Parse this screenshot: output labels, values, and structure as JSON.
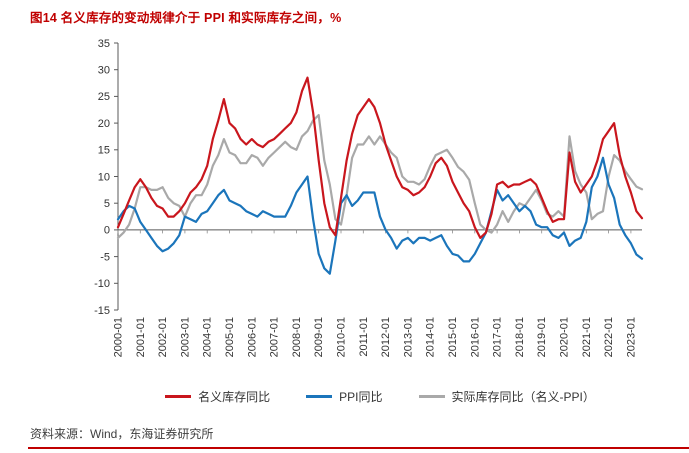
{
  "title": "图14  名义库存的变动规律介于 PPI 和实际库存之间，%",
  "source": "资料来源：Wind，东海证券研究所",
  "colors": {
    "accent_red": "#C00000",
    "axis": "#595959",
    "tick_text": "#333333"
  },
  "legend": [
    {
      "label": "名义库存同比"
    },
    {
      "label": "PPI同比"
    },
    {
      "label": "实际库存同比（名义-PPI）"
    }
  ],
  "chart_data": {
    "type": "line",
    "title": "图14 名义库存的变动规律介于 PPI 和实际库存之间，%",
    "unit": "%",
    "grid": false,
    "legend_position": "bottom",
    "ylim": [
      -15,
      35
    ],
    "y_ticks": [
      35,
      30,
      25,
      20,
      15,
      10,
      5,
      0,
      -5,
      -10,
      -15
    ],
    "x_tick_labels": [
      "2000-01",
      "2001-01",
      "2002-01",
      "2003-01",
      "2004-01",
      "2005-01",
      "2006-01",
      "2007-01",
      "2008-01",
      "2009-01",
      "2010-01",
      "2011-01",
      "2012-01",
      "2013-01",
      "2014-01",
      "2015-01",
      "2016-01",
      "2017-01",
      "2018-01",
      "2019-01",
      "2020-01",
      "2021-01",
      "2022-01",
      "2023-01"
    ],
    "x": [
      "2000-01",
      "2000-04",
      "2000-07",
      "2000-10",
      "2001-01",
      "2001-04",
      "2001-07",
      "2001-10",
      "2002-01",
      "2002-04",
      "2002-07",
      "2002-10",
      "2003-01",
      "2003-04",
      "2003-07",
      "2003-10",
      "2004-01",
      "2004-04",
      "2004-07",
      "2004-10",
      "2005-01",
      "2005-04",
      "2005-07",
      "2005-10",
      "2006-01",
      "2006-04",
      "2006-07",
      "2006-10",
      "2007-01",
      "2007-04",
      "2007-07",
      "2007-10",
      "2008-01",
      "2008-04",
      "2008-07",
      "2008-10",
      "2009-01",
      "2009-04",
      "2009-07",
      "2009-10",
      "2010-01",
      "2010-04",
      "2010-07",
      "2010-10",
      "2011-01",
      "2011-04",
      "2011-07",
      "2011-10",
      "2012-01",
      "2012-04",
      "2012-07",
      "2012-10",
      "2013-01",
      "2013-04",
      "2013-07",
      "2013-10",
      "2014-01",
      "2014-04",
      "2014-07",
      "2014-10",
      "2015-01",
      "2015-04",
      "2015-07",
      "2015-10",
      "2016-01",
      "2016-04",
      "2016-07",
      "2016-10",
      "2017-01",
      "2017-04",
      "2017-07",
      "2017-10",
      "2018-01",
      "2018-04",
      "2018-07",
      "2018-10",
      "2019-01",
      "2019-04",
      "2019-07",
      "2019-10",
      "2020-01",
      "2020-04",
      "2020-07",
      "2020-10",
      "2021-01",
      "2021-04",
      "2021-07",
      "2021-10",
      "2022-01",
      "2022-04",
      "2022-07",
      "2022-10",
      "2023-01",
      "2023-04",
      "2023-07"
    ],
    "series": [
      {
        "name": "名义库存同比",
        "color": "#C9161D",
        "values": [
          0.5,
          3,
          5.5,
          8,
          9.5,
          8,
          6,
          4.5,
          4,
          2.5,
          2.5,
          3.5,
          5,
          7,
          8,
          9.5,
          12,
          17,
          20.5,
          24.5,
          20,
          19,
          17,
          16,
          17,
          16,
          15.5,
          16.5,
          17,
          18,
          19,
          20,
          22,
          26,
          28.5,
          22,
          13,
          5,
          0.5,
          -1,
          6,
          13,
          18,
          21.5,
          23,
          24.5,
          23,
          20,
          16,
          13,
          10,
          8,
          7.5,
          6.5,
          7,
          8,
          10,
          12.5,
          13.5,
          12,
          9,
          7,
          5,
          3.5,
          0.5,
          -1.5,
          -0.5,
          3,
          8.5,
          9,
          8,
          8.5,
          8.5,
          9,
          9.5,
          8.5,
          6,
          3.5,
          1.5,
          2,
          2,
          14.5,
          9,
          7,
          8.5,
          10,
          13,
          17,
          18.5,
          20,
          14,
          10,
          7,
          3.5,
          2.2
        ]
      },
      {
        "name": "PPI同比",
        "color": "#1B75BB",
        "values": [
          2,
          3.5,
          4.5,
          4,
          1.5,
          0,
          -1.5,
          -3,
          -4,
          -3.5,
          -2.5,
          -1,
          2.5,
          2,
          1.5,
          3,
          3.5,
          5,
          6.5,
          7.5,
          5.5,
          5,
          4.5,
          3.5,
          3,
          2.5,
          3.5,
          3,
          2.5,
          2.5,
          2.5,
          4.5,
          7,
          8.5,
          10,
          2,
          -4.5,
          -7.2,
          -8.2,
          -2,
          5,
          6.5,
          4.5,
          5.5,
          7,
          7,
          7,
          2.5,
          0,
          -1.5,
          -3.5,
          -2,
          -1.5,
          -2.5,
          -1.5,
          -1.5,
          -2,
          -1.5,
          -1,
          -3,
          -4.5,
          -4.8,
          -5.9,
          -5.9,
          -4.5,
          -2.5,
          -0.5,
          3.5,
          7.5,
          5.5,
          6.5,
          5,
          3.5,
          4.5,
          3.5,
          1,
          0.5,
          0.5,
          -1,
          -1.5,
          -0.5,
          -3,
          -2,
          -1.5,
          1.5,
          8,
          10,
          13.5,
          8.5,
          6,
          1,
          -1,
          -2.5,
          -4.6,
          -5.4
        ]
      },
      {
        "name": "实际库存同比（名义-PPI）",
        "color": "#A9A9A9",
        "values": [
          -1.5,
          -0.5,
          1,
          4,
          8,
          8,
          7.5,
          7.5,
          8,
          6,
          5,
          4.5,
          2.5,
          5,
          6.5,
          6.5,
          8.5,
          12,
          14,
          17,
          14.5,
          14,
          12.5,
          12.5,
          14,
          13.5,
          12,
          13.5,
          14.5,
          15.5,
          16.5,
          15.5,
          15,
          17.5,
          18.5,
          20.5,
          21.5,
          13,
          8.5,
          2,
          1,
          6.5,
          13.5,
          16,
          16,
          17.5,
          16,
          17.5,
          16,
          14.5,
          13.5,
          10,
          9,
          9,
          8.5,
          9.5,
          12,
          14,
          14.5,
          15,
          13.5,
          11.8,
          10.9,
          9.4,
          5,
          1,
          0,
          -0.5,
          1,
          3.5,
          1.5,
          3.5,
          5,
          4.5,
          6,
          7.5,
          5.5,
          3,
          2.5,
          3.5,
          2.5,
          17.5,
          11,
          8.5,
          7,
          2,
          3,
          3.5,
          10,
          14,
          13,
          11,
          9.5,
          8.1,
          7.6
        ]
      }
    ]
  }
}
